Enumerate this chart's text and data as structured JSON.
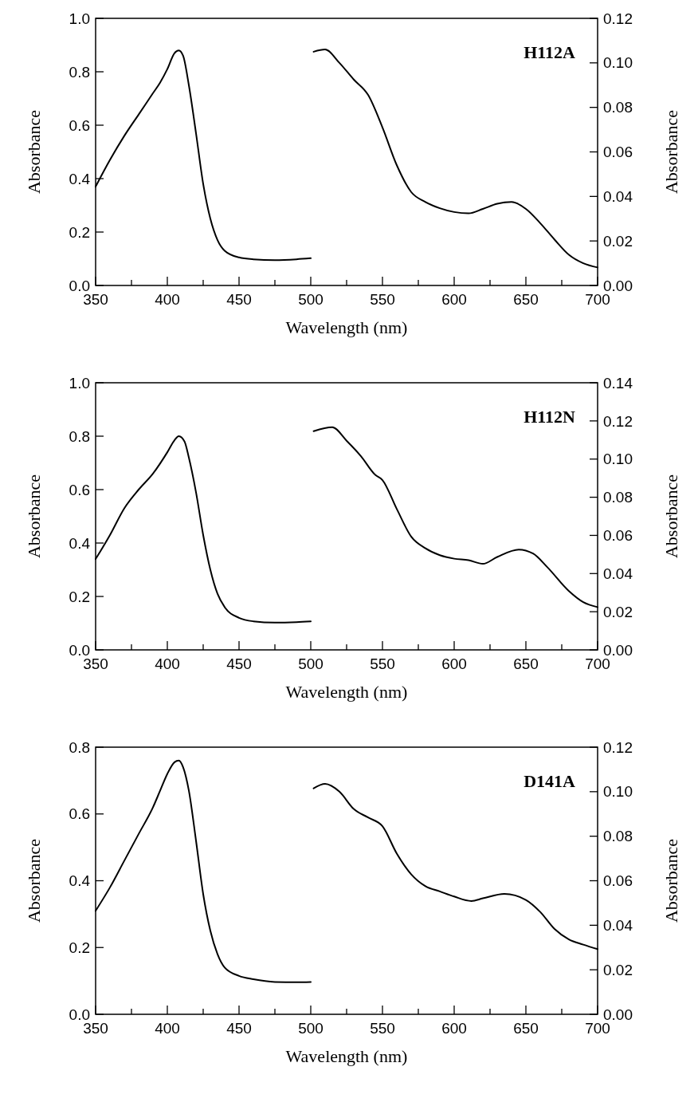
{
  "chart_data": [
    {
      "type": "line",
      "annotations": [
        "H112A"
      ],
      "xlabel": "Wavelength (nm)",
      "ylabel": "Absorbance",
      "y2label": "Absorbance",
      "xlim": [
        350,
        700
      ],
      "xticks": [
        350,
        {
          "value": 375,
          "label": null
        },
        400,
        {
          "value": 425,
          "label": null
        },
        450,
        {
          "value": 475,
          "label": null
        },
        500,
        {
          "value": 525,
          "label": null
        },
        550,
        {
          "value": 575,
          "label": null
        },
        600,
        {
          "value": 625,
          "label": null
        },
        650,
        {
          "value": 675,
          "label": null
        },
        700
      ],
      "ylim": [
        0,
        1
      ],
      "yticks": [
        {
          "value": 0,
          "label": "0.0"
        },
        {
          "value": 0.2,
          "label": "0.2"
        },
        {
          "value": 0.4,
          "label": "0.4"
        },
        {
          "value": 0.6,
          "label": "0.6"
        },
        {
          "value": 0.8,
          "label": "0.8"
        },
        {
          "value": 1,
          "label": "1.0"
        }
      ],
      "y2lim": [
        0,
        0.12
      ],
      "y2ticks": [
        {
          "value": 0,
          "label": "0.00"
        },
        {
          "value": 0.02,
          "label": "0.02"
        },
        {
          "value": 0.04,
          "label": "0.04"
        },
        {
          "value": 0.06,
          "label": "0.06"
        },
        {
          "value": 0.08,
          "label": "0.08"
        },
        {
          "value": 0.1,
          "label": "0.10"
        },
        {
          "value": 0.12,
          "label": "0.12"
        }
      ],
      "series": [
        {
          "color": "#000000",
          "x": [
            350,
            360,
            370,
            380,
            390,
            395,
            400,
            405,
            408,
            411,
            415,
            420,
            425,
            430,
            435,
            440,
            450,
            460,
            475,
            490,
            500
          ],
          "values": [
            0.37,
            0.47,
            0.56,
            0.64,
            0.72,
            0.76,
            0.81,
            0.87,
            0.88,
            0.86,
            0.75,
            0.57,
            0.38,
            0.25,
            0.17,
            0.13,
            0.105,
            0.098,
            0.095,
            0.098,
            0.102
          ]
        },
        {
          "color": "#000000",
          "axis": "y2",
          "x": [
            502,
            510,
            520,
            530,
            540,
            550,
            560,
            570,
            580,
            590,
            600,
            610,
            620,
            630,
            640,
            650,
            660,
            670,
            680,
            690,
            700
          ],
          "values": [
            0.105,
            0.106,
            0.1,
            0.0925,
            0.0856,
            0.071,
            0.054,
            0.042,
            0.0375,
            0.0347,
            0.033,
            0.0324,
            0.0344,
            0.0367,
            0.0375,
            0.0344,
            0.028,
            0.0206,
            0.0138,
            0.01,
            0.0081
          ]
        }
      ]
    },
    {
      "type": "line",
      "annotations": [
        "H112N"
      ],
      "xlabel": "Wavelength (nm)",
      "ylabel": "Absorbance",
      "y2label": "Absorbance",
      "xlim": [
        350,
        700
      ],
      "xticks": [
        350,
        {
          "value": 375,
          "label": null
        },
        400,
        {
          "value": 425,
          "label": null
        },
        450,
        {
          "value": 475,
          "label": null
        },
        500,
        {
          "value": 525,
          "label": null
        },
        550,
        {
          "value": 575,
          "label": null
        },
        600,
        {
          "value": 625,
          "label": null
        },
        650,
        {
          "value": 675,
          "label": null
        },
        700
      ],
      "ylim": [
        0,
        1
      ],
      "yticks": [
        {
          "value": 0,
          "label": "0.0"
        },
        {
          "value": 0.2,
          "label": "0.2"
        },
        {
          "value": 0.4,
          "label": "0.4"
        },
        {
          "value": 0.6,
          "label": "0.6"
        },
        {
          "value": 0.8,
          "label": "0.8"
        },
        {
          "value": 1,
          "label": "1.0"
        }
      ],
      "y2lim": [
        0,
        0.14
      ],
      "y2ticks": [
        {
          "value": 0,
          "label": "0.00"
        },
        {
          "value": 0.02,
          "label": "0.02"
        },
        {
          "value": 0.04,
          "label": "0.04"
        },
        {
          "value": 0.06,
          "label": "0.06"
        },
        {
          "value": 0.08,
          "label": "0.08"
        },
        {
          "value": 0.1,
          "label": "0.10"
        },
        {
          "value": 0.12,
          "label": "0.12"
        },
        {
          "value": 0.14,
          "label": "0.14"
        }
      ],
      "series": [
        {
          "color": "#000000",
          "x": [
            350,
            360,
            370,
            380,
            390,
            400,
            405,
            408,
            412,
            415,
            420,
            425,
            430,
            435,
            440,
            450,
            460,
            475,
            490,
            500
          ],
          "values": [
            0.34,
            0.43,
            0.53,
            0.6,
            0.66,
            0.74,
            0.785,
            0.8,
            0.78,
            0.72,
            0.59,
            0.43,
            0.3,
            0.21,
            0.16,
            0.12,
            0.107,
            0.102,
            0.104,
            0.107
          ]
        },
        {
          "color": "#000000",
          "axis": "y2",
          "x": [
            502,
            515,
            525,
            535,
            545,
            550,
            560,
            570,
            580,
            590,
            600,
            610,
            620,
            630,
            645,
            655,
            665,
            680,
            690,
            700
          ],
          "values": [
            0.1146,
            0.1167,
            0.1096,
            0.1015,
            0.0917,
            0.089,
            0.0738,
            0.0594,
            0.0532,
            0.0496,
            0.0478,
            0.047,
            0.0451,
            0.0487,
            0.0526,
            0.0505,
            0.0433,
            0.0308,
            0.025,
            0.0224
          ]
        }
      ]
    },
    {
      "type": "line",
      "annotations": [
        "D141A"
      ],
      "xlabel": "Wavelength (nm)",
      "ylabel": "Absorbance",
      "y2label": "Absorbance",
      "xlim": [
        350,
        700
      ],
      "xticks": [
        350,
        {
          "value": 375,
          "label": null
        },
        400,
        {
          "value": 425,
          "label": null
        },
        450,
        {
          "value": 475,
          "label": null
        },
        500,
        {
          "value": 525,
          "label": null
        },
        550,
        {
          "value": 575,
          "label": null
        },
        600,
        {
          "value": 625,
          "label": null
        },
        650,
        {
          "value": 675,
          "label": null
        },
        700
      ],
      "ylim": [
        0,
        0.8
      ],
      "yticks": [
        {
          "value": 0,
          "label": "0.0"
        },
        {
          "value": 0.2,
          "label": "0.2"
        },
        {
          "value": 0.4,
          "label": "0.4"
        },
        {
          "value": 0.6,
          "label": "0.6"
        },
        {
          "value": 0.8,
          "label": "0.8"
        }
      ],
      "y2lim": [
        0,
        0.12
      ],
      "y2ticks": [
        {
          "value": 0,
          "label": "0.00"
        },
        {
          "value": 0.02,
          "label": "0.02"
        },
        {
          "value": 0.04,
          "label": "0.04"
        },
        {
          "value": 0.06,
          "label": "0.06"
        },
        {
          "value": 0.08,
          "label": "0.08"
        },
        {
          "value": 0.1,
          "label": "0.10"
        },
        {
          "value": 0.12,
          "label": "0.12"
        }
      ],
      "series": [
        {
          "color": "#000000",
          "x": [
            350,
            360,
            370,
            380,
            390,
            395,
            400,
            405,
            408,
            411,
            415,
            420,
            425,
            430,
            435,
            440,
            450,
            460,
            475,
            490,
            500
          ],
          "values": [
            0.31,
            0.38,
            0.46,
            0.54,
            0.62,
            0.67,
            0.72,
            0.755,
            0.76,
            0.74,
            0.67,
            0.52,
            0.36,
            0.25,
            0.18,
            0.14,
            0.115,
            0.105,
            0.097,
            0.096,
            0.097
          ]
        },
        {
          "color": "#000000",
          "axis": "y2",
          "x": [
            502,
            510,
            520,
            530,
            540,
            550,
            560,
            570,
            580,
            590,
            600,
            612,
            620,
            635,
            650,
            660,
            670,
            680,
            690,
            700
          ],
          "values": [
            0.1015,
            0.1035,
            0.1,
            0.0922,
            0.0884,
            0.0845,
            0.0722,
            0.0629,
            0.0575,
            0.0552,
            0.0529,
            0.0509,
            0.0521,
            0.0541,
            0.0514,
            0.046,
            0.0383,
            0.0336,
            0.0313,
            0.0293
          ]
        }
      ]
    }
  ]
}
